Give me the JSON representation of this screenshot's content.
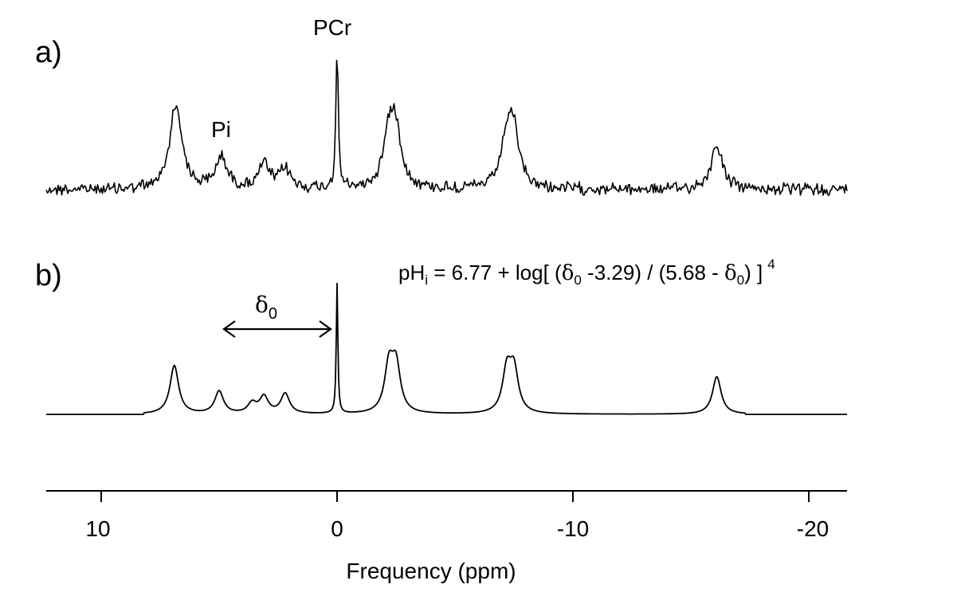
{
  "chart_data": [
    {
      "type": "line",
      "panel_label": "a)",
      "kind": "measured spectrum (noisy)",
      "x_unit": "ppm",
      "xlim": [
        12.5,
        -21.5
      ],
      "x_axis_reversed": true,
      "peak_labels": [
        {
          "text": "PCr",
          "x": 0
        },
        {
          "text": "Pi",
          "x": 5
        }
      ],
      "series": [
        {
          "peaks_ppm": [
            {
              "x": 6.9,
              "height": 0.55
            },
            {
              "x": 6.7,
              "height": 0.3
            },
            {
              "x": 4.9,
              "height": 0.3
            },
            {
              "x": 3.1,
              "height": 0.22
            },
            {
              "x": 2.2,
              "height": 0.18
            },
            {
              "x": 0.0,
              "height": 1.3
            },
            {
              "x": -2.2,
              "height": 0.48
            },
            {
              "x": -2.5,
              "height": 0.48
            },
            {
              "x": -7.2,
              "height": 0.45
            },
            {
              "x": -7.5,
              "height": 0.45
            },
            {
              "x": -16.1,
              "height": 0.42
            }
          ],
          "baseline_noise": "high"
        }
      ]
    },
    {
      "type": "line",
      "panel_label": "b)",
      "kind": "fitted spectrum (smooth)",
      "x_unit": "ppm",
      "xlim": [
        12.5,
        -21.5
      ],
      "x_axis_reversed": true,
      "annotation": {
        "symbol": "δ",
        "subscript": "0",
        "arrow_from_ppm": 4.9,
        "arrow_to_ppm": 0.0
      },
      "formula": {
        "prefix": "pH",
        "prefix_sub": "i",
        "text1": " = 6.77 + log[ (",
        "delta": "δ",
        "delta_sub": "0",
        "text2": " -3.29) / (5.68 - ",
        "text3": ") ]",
        "superscript": "4"
      },
      "series": [
        {
          "peaks_ppm": [
            {
              "x": 6.9,
              "height": 0.58
            },
            {
              "x": 5.0,
              "height": 0.27
            },
            {
              "x": 3.6,
              "height": 0.12
            },
            {
              "x": 3.1,
              "height": 0.2
            },
            {
              "x": 2.2,
              "height": 0.24
            },
            {
              "x": 0.0,
              "height": 1.55
            },
            {
              "x": -2.2,
              "height": 0.55
            },
            {
              "x": -2.5,
              "height": 0.55
            },
            {
              "x": -7.2,
              "height": 0.5
            },
            {
              "x": -7.5,
              "height": 0.5
            },
            {
              "x": -16.1,
              "height": 0.45
            }
          ],
          "baseline_noise": "none"
        }
      ]
    }
  ],
  "x_axis": {
    "title": "Frequency (ppm)",
    "ticks": [
      10,
      0,
      -10,
      -20
    ],
    "tick_labels": [
      "10",
      "0",
      "-10",
      "-20"
    ]
  }
}
